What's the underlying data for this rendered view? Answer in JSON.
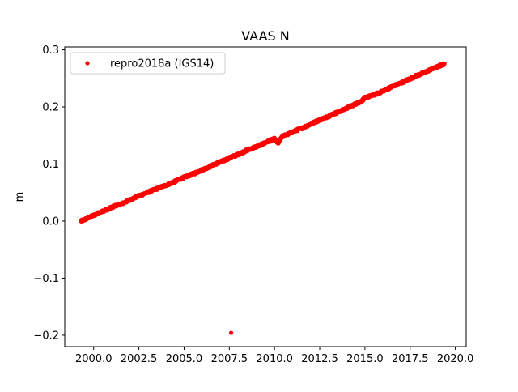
{
  "chart_data": {
    "type": "scatter",
    "title": "VAAS N",
    "xlabel": "",
    "ylabel": "m",
    "xlim": [
      1998.4,
      2020.6
    ],
    "ylim": [
      -0.22,
      0.305
    ],
    "x_ticks": [
      2000.0,
      2002.5,
      2005.0,
      2007.5,
      2010.0,
      2012.5,
      2015.0,
      2017.5,
      2020.0
    ],
    "x_tick_labels": [
      "2000.0",
      "2002.5",
      "2005.0",
      "2007.5",
      "2010.0",
      "2012.5",
      "2015.0",
      "2017.5",
      "2020.0"
    ],
    "y_ticks": [
      -0.2,
      -0.1,
      0.0,
      0.1,
      0.2,
      0.3
    ],
    "y_tick_labels": [
      "−0.2",
      "−0.1",
      "0.0",
      "0.1",
      "0.2",
      "0.3"
    ],
    "grid": false,
    "legend": {
      "position": "top-left",
      "entries": [
        "repro2018a (IGS14)"
      ]
    },
    "series": [
      {
        "name": "repro2018a (IGS14)",
        "color": "#ff0000",
        "marker": "circle",
        "points": [
          [
            1999.3,
            0.0
          ],
          [
            1999.6,
            0.004
          ],
          [
            2000.0,
            0.01
          ],
          [
            2000.4,
            0.016
          ],
          [
            2000.8,
            0.021
          ],
          [
            2001.2,
            0.027
          ],
          [
            2001.6,
            0.031
          ],
          [
            2002.0,
            0.037
          ],
          [
            2002.4,
            0.043
          ],
          [
            2002.8,
            0.048
          ],
          [
            2003.2,
            0.053
          ],
          [
            2003.6,
            0.058
          ],
          [
            2004.0,
            0.063
          ],
          [
            2004.4,
            0.068
          ],
          [
            2004.8,
            0.074
          ],
          [
            2005.2,
            0.079
          ],
          [
            2005.6,
            0.084
          ],
          [
            2006.0,
            0.09
          ],
          [
            2006.4,
            0.095
          ],
          [
            2006.8,
            0.101
          ],
          [
            2007.2,
            0.106
          ],
          [
            2007.6,
            0.112
          ],
          [
            2008.0,
            0.117
          ],
          [
            2008.4,
            0.123
          ],
          [
            2008.8,
            0.128
          ],
          [
            2009.2,
            0.133
          ],
          [
            2009.6,
            0.139
          ],
          [
            2010.0,
            0.144
          ],
          [
            2010.2,
            0.136
          ],
          [
            2010.4,
            0.148
          ],
          [
            2010.8,
            0.153
          ],
          [
            2011.2,
            0.159
          ],
          [
            2011.6,
            0.164
          ],
          [
            2012.0,
            0.17
          ],
          [
            2012.4,
            0.176
          ],
          [
            2012.8,
            0.181
          ],
          [
            2013.2,
            0.187
          ],
          [
            2013.6,
            0.192
          ],
          [
            2014.0,
            0.198
          ],
          [
            2014.4,
            0.204
          ],
          [
            2014.8,
            0.21
          ],
          [
            2015.0,
            0.216
          ],
          [
            2015.4,
            0.22
          ],
          [
            2015.8,
            0.225
          ],
          [
            2016.2,
            0.231
          ],
          [
            2016.6,
            0.237
          ],
          [
            2017.0,
            0.242
          ],
          [
            2017.4,
            0.248
          ],
          [
            2017.8,
            0.254
          ],
          [
            2018.2,
            0.259
          ],
          [
            2018.6,
            0.265
          ],
          [
            2019.0,
            0.27
          ],
          [
            2019.4,
            0.276
          ],
          [
            2007.6,
            -0.196
          ]
        ]
      }
    ]
  }
}
